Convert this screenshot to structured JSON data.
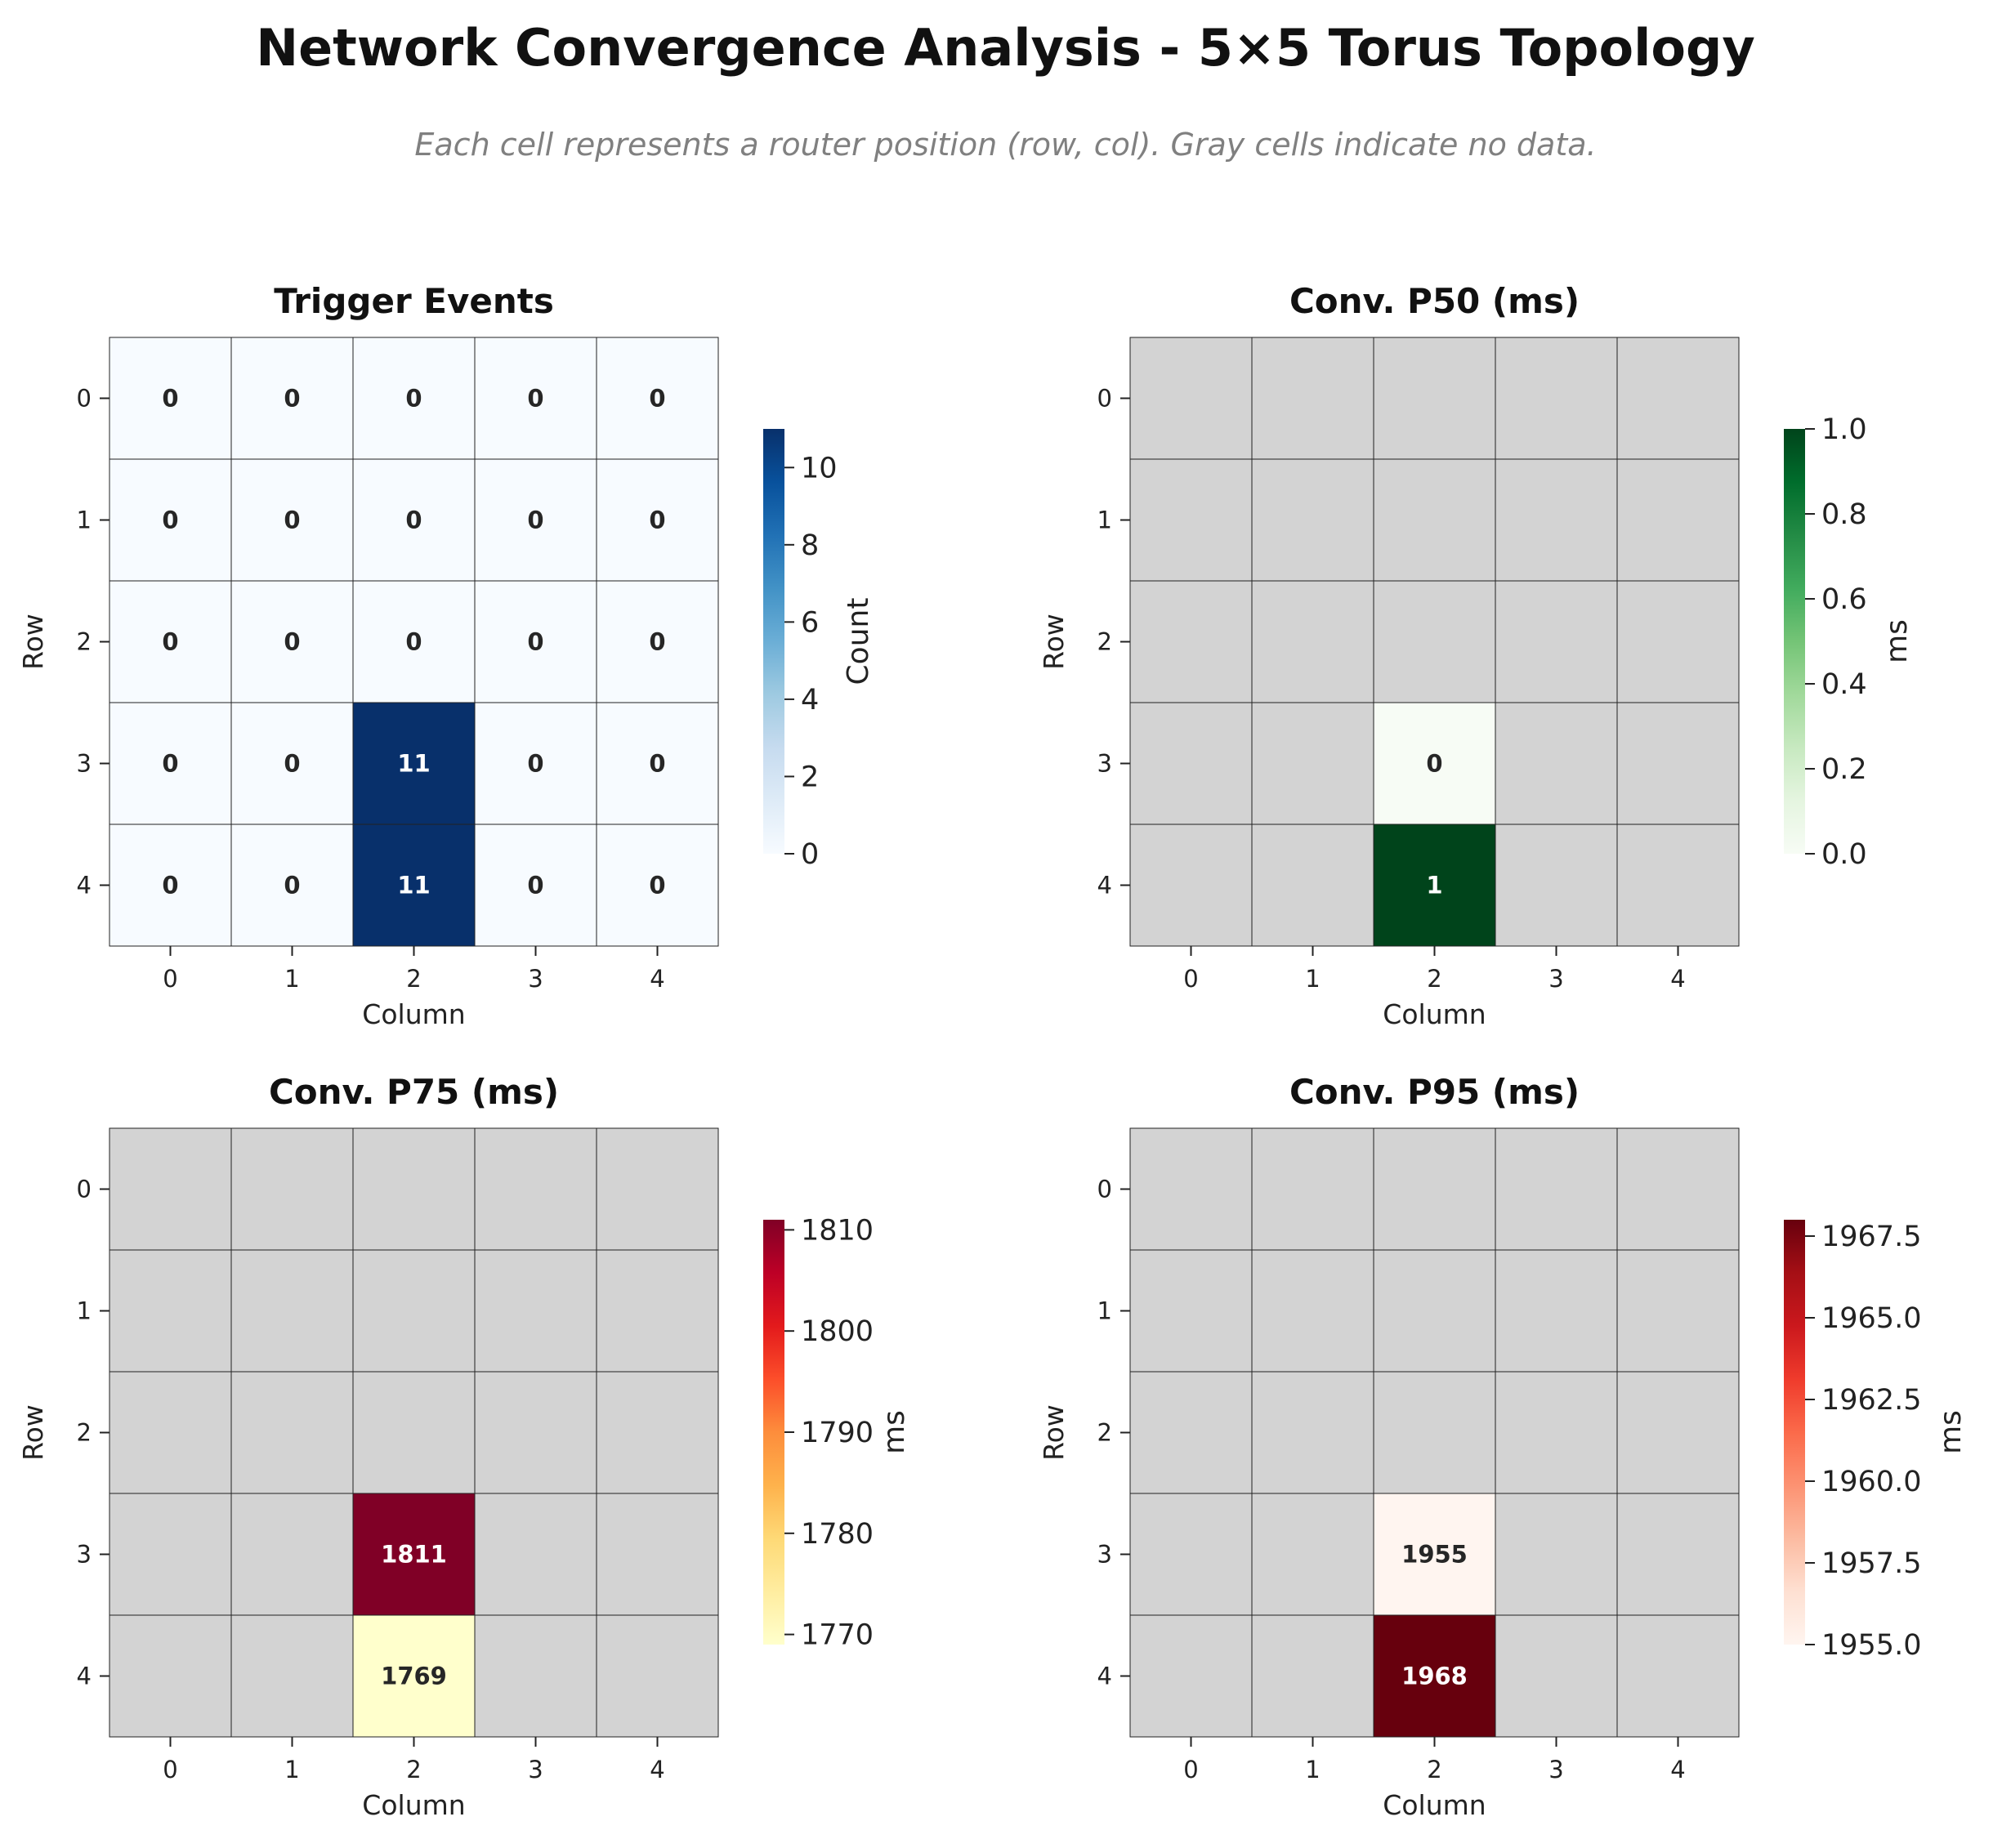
{
  "title": "Network Convergence Analysis - 5×5 Torus Topology",
  "subtitle": "Each cell represents a router position (row, col). Gray cells indicate no data.",
  "chart_data": [
    {
      "type": "heatmap",
      "title": "Trigger Events",
      "xlabel": "Column",
      "ylabel": "Row",
      "x_ticks": [
        "0",
        "1",
        "2",
        "3",
        "4"
      ],
      "y_ticks": [
        "0",
        "1",
        "2",
        "3",
        "4"
      ],
      "colormap": [
        "#f7fbff",
        "#deebf7",
        "#c6dbef",
        "#9ecae1",
        "#6baed6",
        "#4292c6",
        "#2171b5",
        "#08519c",
        "#08306b"
      ],
      "colorbar_label": "Count",
      "vmin": 0,
      "vmax": 11,
      "colorbar_ticks": [
        0,
        2,
        4,
        6,
        8,
        10
      ],
      "colorbar_tick_labels": [
        "0",
        "2",
        "4",
        "6",
        "8",
        "10"
      ],
      "values": [
        [
          0,
          0,
          0,
          0,
          0
        ],
        [
          0,
          0,
          0,
          0,
          0
        ],
        [
          0,
          0,
          0,
          0,
          0
        ],
        [
          0,
          0,
          11,
          0,
          0
        ],
        [
          0,
          0,
          11,
          0,
          0
        ]
      ],
      "labels": [
        [
          "0",
          "0",
          "0",
          "0",
          "0"
        ],
        [
          "0",
          "0",
          "0",
          "0",
          "0"
        ],
        [
          "0",
          "0",
          "0",
          "0",
          "0"
        ],
        [
          "0",
          "0",
          "11",
          "0",
          "0"
        ],
        [
          "0",
          "0",
          "11",
          "0",
          "0"
        ]
      ]
    },
    {
      "type": "heatmap",
      "title": "Conv. P50 (ms)",
      "xlabel": "Column",
      "ylabel": "Row",
      "x_ticks": [
        "0",
        "1",
        "2",
        "3",
        "4"
      ],
      "y_ticks": [
        "0",
        "1",
        "2",
        "3",
        "4"
      ],
      "colormap": [
        "#f7fcf5",
        "#e5f5e0",
        "#c7e9c0",
        "#a1d99b",
        "#74c476",
        "#41ab5d",
        "#238b45",
        "#006d2c",
        "#00441b"
      ],
      "colorbar_label": "ms",
      "vmin": 0,
      "vmax": 1,
      "colorbar_ticks": [
        0,
        0.2,
        0.4,
        0.6,
        0.8,
        1.0
      ],
      "colorbar_tick_labels": [
        "0.0",
        "0.2",
        "0.4",
        "0.6",
        "0.8",
        "1.0"
      ],
      "missing_color": "#d3d3d3",
      "values": [
        [
          null,
          null,
          null,
          null,
          null
        ],
        [
          null,
          null,
          null,
          null,
          null
        ],
        [
          null,
          null,
          null,
          null,
          null
        ],
        [
          null,
          null,
          0,
          null,
          null
        ],
        [
          null,
          null,
          1,
          null,
          null
        ]
      ],
      "labels": [
        [
          "",
          "",
          "",
          "",
          ""
        ],
        [
          "",
          "",
          "",
          "",
          ""
        ],
        [
          "",
          "",
          "",
          "",
          ""
        ],
        [
          "",
          "",
          "0",
          "",
          ""
        ],
        [
          "",
          "",
          "1",
          "",
          ""
        ]
      ]
    },
    {
      "type": "heatmap",
      "title": "Conv. P75 (ms)",
      "xlabel": "Column",
      "ylabel": "Row",
      "x_ticks": [
        "0",
        "1",
        "2",
        "3",
        "4"
      ],
      "y_ticks": [
        "0",
        "1",
        "2",
        "3",
        "4"
      ],
      "colormap": [
        "#ffffcc",
        "#ffeda0",
        "#fed976",
        "#feb24c",
        "#fd8d3c",
        "#fc4e2a",
        "#e31a1c",
        "#bd0026",
        "#800026"
      ],
      "colorbar_label": "ms",
      "vmin": 1769,
      "vmax": 1811,
      "colorbar_ticks": [
        1770,
        1780,
        1790,
        1800,
        1810
      ],
      "colorbar_tick_labels": [
        "1770",
        "1780",
        "1790",
        "1800",
        "1810"
      ],
      "missing_color": "#d3d3d3",
      "values": [
        [
          null,
          null,
          null,
          null,
          null
        ],
        [
          null,
          null,
          null,
          null,
          null
        ],
        [
          null,
          null,
          null,
          null,
          null
        ],
        [
          null,
          null,
          1811,
          null,
          null
        ],
        [
          null,
          null,
          1769,
          null,
          null
        ]
      ],
      "labels": [
        [
          "",
          "",
          "",
          "",
          ""
        ],
        [
          "",
          "",
          "",
          "",
          ""
        ],
        [
          "",
          "",
          "",
          "",
          ""
        ],
        [
          "",
          "",
          "1811",
          "",
          ""
        ],
        [
          "",
          "",
          "1769",
          "",
          ""
        ]
      ]
    },
    {
      "type": "heatmap",
      "title": "Conv. P95 (ms)",
      "xlabel": "Column",
      "ylabel": "Row",
      "x_ticks": [
        "0",
        "1",
        "2",
        "3",
        "4"
      ],
      "y_ticks": [
        "0",
        "1",
        "2",
        "3",
        "4"
      ],
      "colormap": [
        "#fff5f0",
        "#fee0d2",
        "#fcbba1",
        "#fc9272",
        "#fb6a4a",
        "#ef3b2c",
        "#cb181d",
        "#a50f15",
        "#67000d"
      ],
      "colorbar_label": "ms",
      "vmin": 1955,
      "vmax": 1968,
      "colorbar_ticks": [
        1955,
        1957.5,
        1960,
        1962.5,
        1965,
        1967.5
      ],
      "colorbar_tick_labels": [
        "1955.0",
        "1957.5",
        "1960.0",
        "1962.5",
        "1965.0",
        "1967.5"
      ],
      "missing_color": "#d3d3d3",
      "values": [
        [
          null,
          null,
          null,
          null,
          null
        ],
        [
          null,
          null,
          null,
          null,
          null
        ],
        [
          null,
          null,
          null,
          null,
          null
        ],
        [
          null,
          null,
          1955,
          null,
          null
        ],
        [
          null,
          null,
          1968,
          null,
          null
        ]
      ],
      "labels": [
        [
          "",
          "",
          "",
          "",
          ""
        ],
        [
          "",
          "",
          "",
          "",
          ""
        ],
        [
          "",
          "",
          "",
          "",
          ""
        ],
        [
          "",
          "",
          "1955",
          "",
          ""
        ],
        [
          "",
          "",
          "1968",
          "",
          ""
        ]
      ]
    }
  ]
}
